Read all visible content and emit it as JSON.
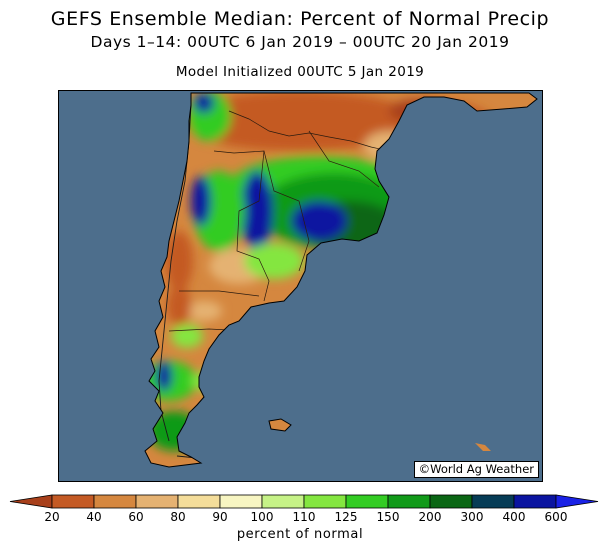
{
  "header": {
    "title": "GEFS Ensemble Median: Percent of Normal Precip",
    "period": "Days 1–14: 00UTC 6 Jan 2019 – 00UTC 20 Jan 2019",
    "init": "Model Initialized 00UTC 5 Jan 2019"
  },
  "credit": "©World Ag Weather",
  "colorbar": {
    "label": "percent of normal",
    "ticks": [
      "20",
      "40",
      "60",
      "80",
      "90",
      "100",
      "110",
      "125",
      "150",
      "200",
      "300",
      "400",
      "600"
    ],
    "colors": [
      "#a8401b",
      "#c45a24",
      "#d5873f",
      "#e5b272",
      "#f4dd9a",
      "#f7f5c2",
      "#c6f287",
      "#84e640",
      "#33cc23",
      "#119a19",
      "#0a6614",
      "#063c56",
      "#0a14a0",
      "#1a22e6"
    ],
    "ocean_color": "#4d6e8c"
  }
}
